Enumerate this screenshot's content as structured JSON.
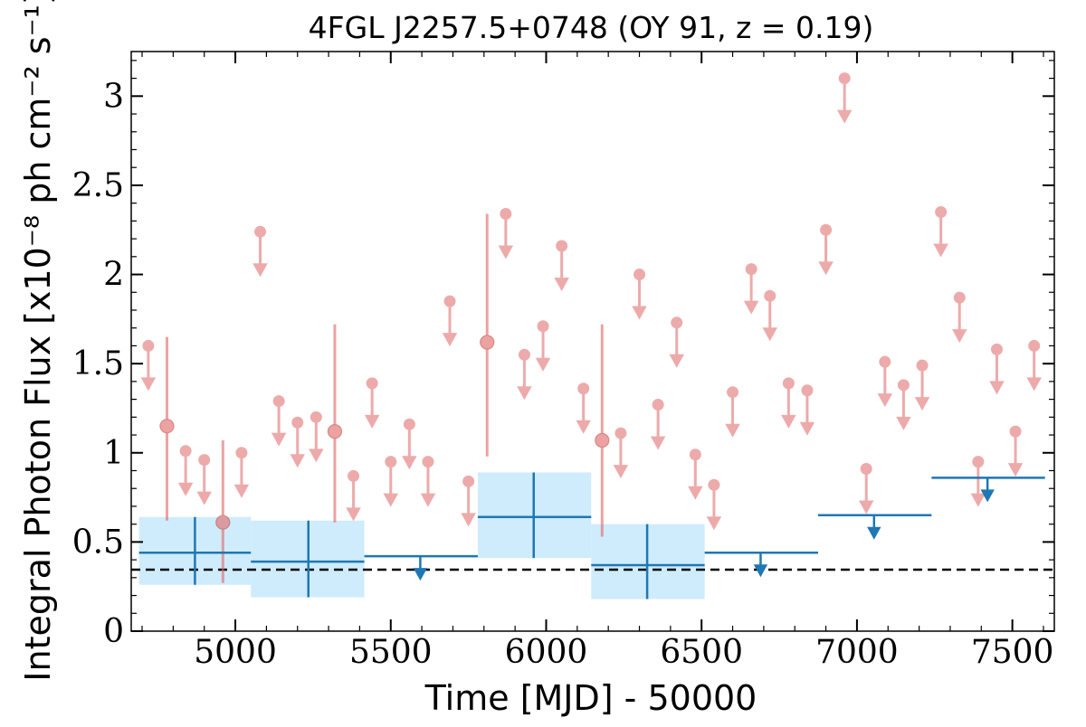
{
  "chart_data": {
    "type": "scatter",
    "title": "4FGL J2257.5+0748 (OY 91, z = 0.19)",
    "xlabel": "Time [MJD] - 50000",
    "ylabel": "Integral Photon Flux [x10⁻⁸ ph cm⁻² s⁻¹]",
    "xlim": [
      4665,
      7635
    ],
    "ylim": [
      0,
      3.25
    ],
    "xticks": [
      5000,
      5500,
      6000,
      6500,
      7000,
      7500
    ],
    "xtick_labels": [
      "5000",
      "5500",
      "6000",
      "6500",
      "7000",
      "7500"
    ],
    "yticks": [
      0,
      0.5,
      1,
      1.5,
      2,
      2.5,
      3
    ],
    "ytick_labels": [
      "0",
      "0.5",
      "1",
      "1.5",
      "2",
      "2.5",
      "3"
    ],
    "reference_line": {
      "y": 0.345,
      "style": "dashed"
    },
    "colors": {
      "fine": "#e06666",
      "coarse": "#1f77b4",
      "band": "#bfe6fb",
      "reference": "#000000"
    },
    "fine_detections": [
      {
        "x": 4780,
        "y": 1.15,
        "lo": 0.62,
        "hi": 1.65
      },
      {
        "x": 4960,
        "y": 0.61,
        "lo": 0.27,
        "hi": 1.07
      },
      {
        "x": 5320,
        "y": 1.12,
        "lo": 0.61,
        "hi": 1.72
      },
      {
        "x": 5810,
        "y": 1.62,
        "lo": 0.98,
        "hi": 2.34
      },
      {
        "x": 6180,
        "y": 1.07,
        "lo": 0.53,
        "hi": 1.72
      }
    ],
    "fine_upper_limits": [
      {
        "x": 4720,
        "y": 1.6
      },
      {
        "x": 4840,
        "y": 1.01
      },
      {
        "x": 4900,
        "y": 0.96
      },
      {
        "x": 5020,
        "y": 1.0
      },
      {
        "x": 5080,
        "y": 2.24
      },
      {
        "x": 5140,
        "y": 1.29
      },
      {
        "x": 5200,
        "y": 1.17
      },
      {
        "x": 5260,
        "y": 1.2
      },
      {
        "x": 5380,
        "y": 0.87
      },
      {
        "x": 5440,
        "y": 1.39
      },
      {
        "x": 5500,
        "y": 0.95
      },
      {
        "x": 5560,
        "y": 1.16
      },
      {
        "x": 5620,
        "y": 0.95
      },
      {
        "x": 5690,
        "y": 1.85
      },
      {
        "x": 5750,
        "y": 0.84
      },
      {
        "x": 5870,
        "y": 2.34
      },
      {
        "x": 5930,
        "y": 1.55
      },
      {
        "x": 5990,
        "y": 1.71
      },
      {
        "x": 6050,
        "y": 2.16
      },
      {
        "x": 6120,
        "y": 1.36
      },
      {
        "x": 6240,
        "y": 1.11
      },
      {
        "x": 6300,
        "y": 2.0
      },
      {
        "x": 6360,
        "y": 1.27
      },
      {
        "x": 6420,
        "y": 1.73
      },
      {
        "x": 6480,
        "y": 0.99
      },
      {
        "x": 6540,
        "y": 0.82
      },
      {
        "x": 6600,
        "y": 1.34
      },
      {
        "x": 6660,
        "y": 2.03
      },
      {
        "x": 6720,
        "y": 1.88
      },
      {
        "x": 6780,
        "y": 1.39
      },
      {
        "x": 6840,
        "y": 1.35
      },
      {
        "x": 6900,
        "y": 2.25
      },
      {
        "x": 6960,
        "y": 3.1
      },
      {
        "x": 7030,
        "y": 0.91
      },
      {
        "x": 7090,
        "y": 1.51
      },
      {
        "x": 7150,
        "y": 1.38
      },
      {
        "x": 7210,
        "y": 1.49
      },
      {
        "x": 7270,
        "y": 2.35
      },
      {
        "x": 7330,
        "y": 1.87
      },
      {
        "x": 7390,
        "y": 0.95
      },
      {
        "x": 7450,
        "y": 1.58
      },
      {
        "x": 7510,
        "y": 1.12
      },
      {
        "x": 7570,
        "y": 1.6
      }
    ],
    "coarse_detections": [
      {
        "x0": 4690,
        "x1": 5050,
        "x": 4870,
        "y": 0.44,
        "lo": 0.26,
        "hi": 0.64
      },
      {
        "x0": 5050,
        "x1": 5415,
        "x": 5235,
        "y": 0.39,
        "lo": 0.19,
        "hi": 0.62
      },
      {
        "x0": 5780,
        "x1": 6145,
        "x": 5960,
        "y": 0.64,
        "lo": 0.41,
        "hi": 0.89
      },
      {
        "x0": 6145,
        "x1": 6510,
        "x": 6325,
        "y": 0.37,
        "lo": 0.18,
        "hi": 0.6
      }
    ],
    "coarse_upper_limits": [
      {
        "x0": 5415,
        "x1": 5780,
        "x": 5595,
        "y": 0.42
      },
      {
        "x0": 6510,
        "x1": 6875,
        "x": 6690,
        "y": 0.44
      },
      {
        "x0": 6875,
        "x1": 7240,
        "x": 7055,
        "y": 0.65
      },
      {
        "x0": 7240,
        "x1": 7605,
        "x": 7420,
        "y": 0.86
      }
    ]
  }
}
